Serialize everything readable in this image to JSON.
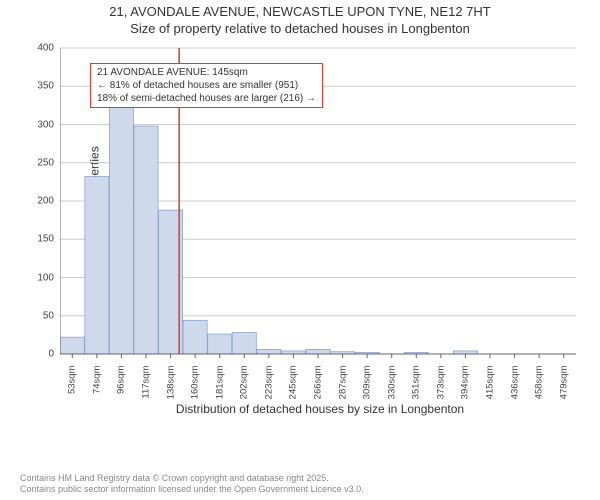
{
  "title": {
    "line1": "21, AVONDALE AVENUE, NEWCASTLE UPON TYNE, NE12 7HT",
    "line2": "Size of property relative to detached houses in Longbenton"
  },
  "chart": {
    "type": "histogram",
    "ylabel": "Number of detached properties",
    "xlabel": "Distribution of detached houses by size in Longbenton",
    "background_color": "#ffffff",
    "grid_color": "#cccccc",
    "axis_color": "#666666",
    "bar_fill": "#cfd9ec",
    "bar_stroke": "#8fa4c9",
    "marker_line_color": "#d73a3a",
    "ylim": [
      0,
      400
    ],
    "ytick_step": 50,
    "categories": [
      "53sqm",
      "74sqm",
      "96sqm",
      "117sqm",
      "138sqm",
      "160sqm",
      "181sqm",
      "202sqm",
      "223sqm",
      "245sqm",
      "266sqm",
      "287sqm",
      "309sqm",
      "330sqm",
      "351sqm",
      "373sqm",
      "394sqm",
      "415sqm",
      "436sqm",
      "458sqm",
      "479sqm"
    ],
    "values": [
      22,
      232,
      327,
      298,
      188,
      44,
      26,
      28,
      6,
      4,
      6,
      3,
      2,
      0,
      2,
      0,
      4,
      0,
      0,
      0,
      0
    ],
    "callout": {
      "border_color": "#d73a3a",
      "line1": "21 AVONDALE AVENUE: 145sqm",
      "line2": "← 81% of detached houses are smaller (951)",
      "line3": "18% of semi-detached houses are larger (216) →"
    },
    "marker_after_index": 4
  },
  "footer": {
    "line1": "Contains HM Land Registry data © Crown copyright and database right 2025.",
    "line2": "Contains public sector information licensed under the Open Government Licence v3.0."
  }
}
